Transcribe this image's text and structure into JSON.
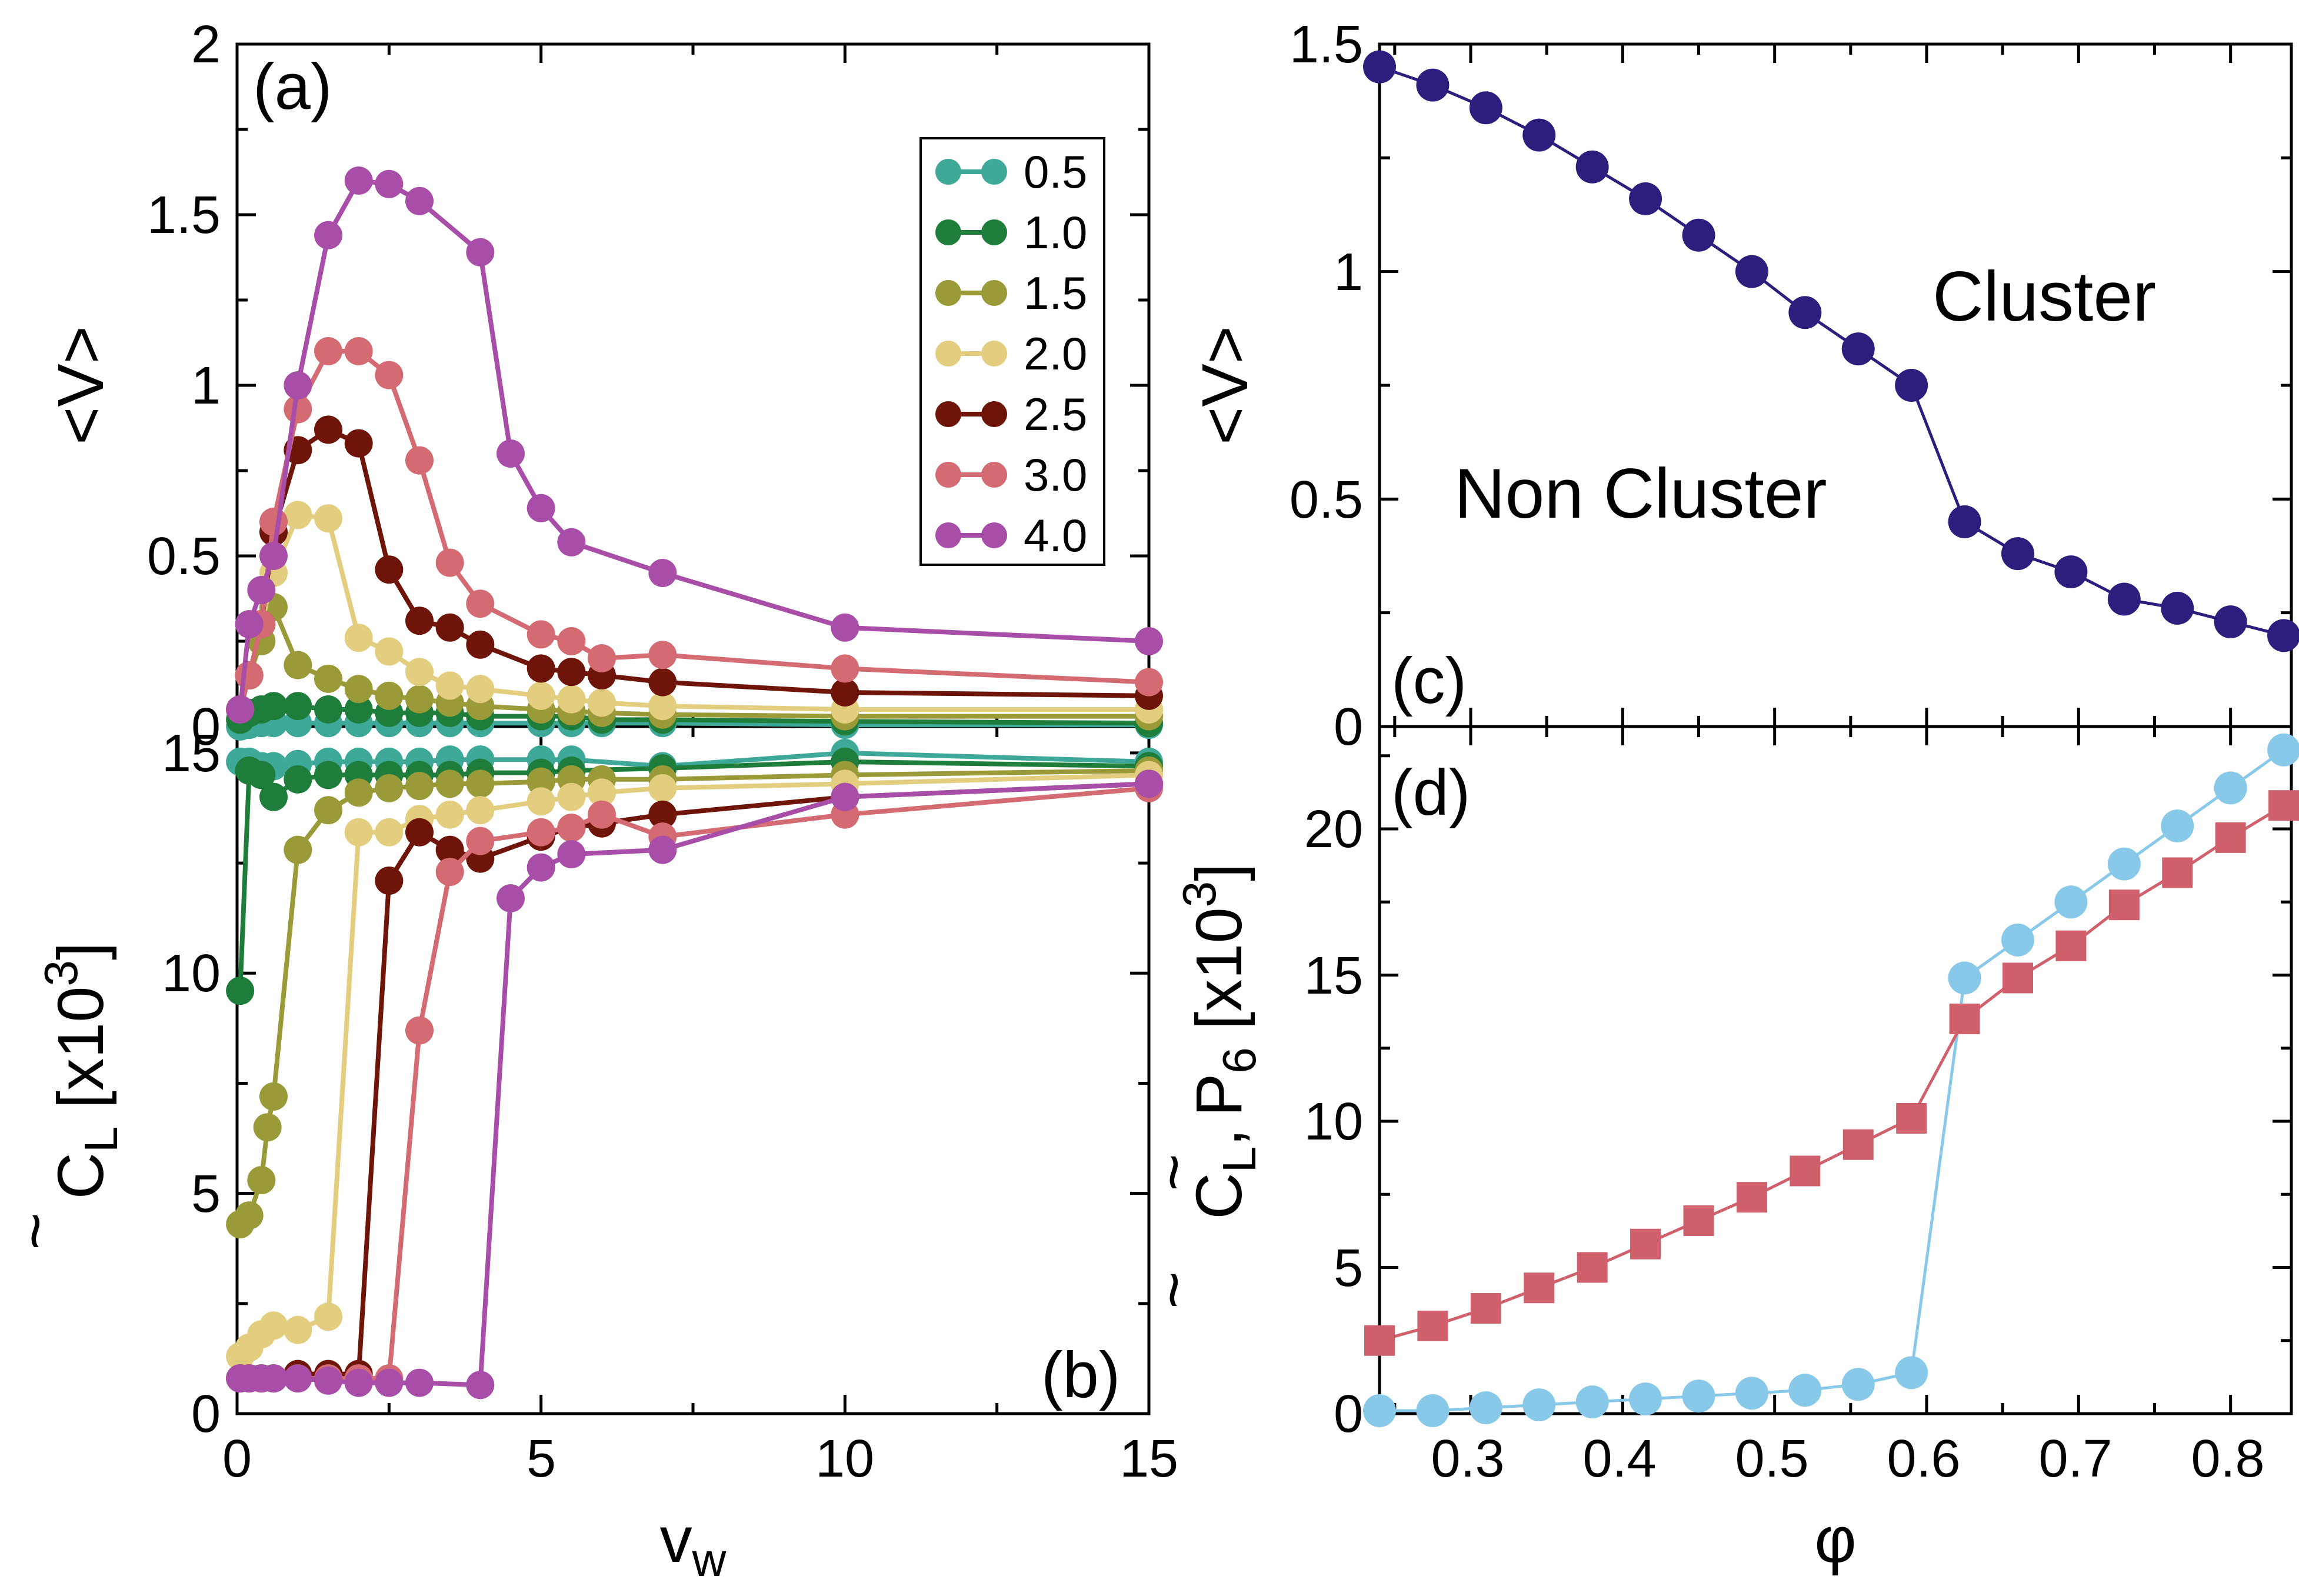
{
  "chart_data": [
    {
      "panel": "a",
      "type": "line",
      "panel_label": "(a)",
      "ylabel": "<V>",
      "xlim": [
        0,
        15
      ],
      "ylim": [
        0,
        2
      ],
      "yticks": [
        "0",
        "0.5",
        "1",
        "1.5",
        "2"
      ],
      "legend_position": "top-right",
      "series": [
        {
          "name": "0.5",
          "color": "#3fa999",
          "x": [
            0.05,
            0.2,
            0.4,
            0.6,
            1.0,
            1.5,
            2.0,
            2.5,
            3.0,
            3.5,
            4.0,
            5.0,
            5.5,
            6.0,
            7.0,
            10.0,
            15.0
          ],
          "y": [
            0.0,
            0.005,
            0.01,
            0.01,
            0.01,
            0.01,
            0.01,
            0.01,
            0.01,
            0.01,
            0.01,
            0.01,
            0.01,
            0.01,
            0.01,
            0.005,
            0.005
          ]
        },
        {
          "name": "1.0",
          "color": "#1e7d3a",
          "x": [
            0.05,
            0.2,
            0.4,
            0.6,
            1.0,
            1.5,
            2.0,
            2.5,
            3.0,
            3.5,
            4.0,
            5.0,
            5.5,
            6.0,
            7.0,
            10.0,
            15.0
          ],
          "y": [
            0.02,
            0.04,
            0.05,
            0.06,
            0.06,
            0.05,
            0.05,
            0.04,
            0.04,
            0.04,
            0.03,
            0.03,
            0.03,
            0.02,
            0.02,
            0.015,
            0.01
          ]
        },
        {
          "name": "1.5",
          "color": "#9a9a38",
          "x": [
            0.05,
            0.2,
            0.4,
            0.6,
            1.0,
            1.5,
            2.0,
            2.5,
            3.0,
            3.5,
            4.0,
            5.0,
            5.5,
            6.0,
            7.0,
            10.0,
            15.0
          ],
          "y": [
            0.05,
            0.15,
            0.25,
            0.35,
            0.18,
            0.14,
            0.11,
            0.09,
            0.08,
            0.07,
            0.06,
            0.05,
            0.045,
            0.04,
            0.035,
            0.03,
            0.03
          ]
        },
        {
          "name": "2.0",
          "color": "#e3cd7e",
          "x": [
            0.05,
            0.2,
            0.4,
            0.6,
            1.0,
            1.5,
            2.0,
            2.5,
            3.0,
            3.5,
            4.0,
            5.0,
            5.5,
            6.0,
            7.0,
            10.0,
            15.0
          ],
          "y": [
            0.05,
            0.15,
            0.3,
            0.45,
            0.62,
            0.61,
            0.26,
            0.22,
            0.16,
            0.12,
            0.11,
            0.09,
            0.08,
            0.07,
            0.06,
            0.05,
            0.05
          ]
        },
        {
          "name": "2.5",
          "color": "#6e1408",
          "x": [
            0.05,
            0.2,
            0.4,
            0.6,
            1.0,
            1.5,
            2.0,
            2.5,
            3.0,
            3.5,
            4.0,
            5.0,
            5.5,
            6.0,
            7.0,
            10.0,
            15.0
          ],
          "y": [
            0.05,
            0.15,
            0.3,
            0.57,
            0.81,
            0.87,
            0.83,
            0.46,
            0.31,
            0.29,
            0.24,
            0.17,
            0.16,
            0.15,
            0.13,
            0.1,
            0.09
          ]
        },
        {
          "name": "3.0",
          "color": "#d46a72",
          "x": [
            0.05,
            0.2,
            0.4,
            0.6,
            1.0,
            1.5,
            2.0,
            2.5,
            3.0,
            3.5,
            4.0,
            5.0,
            5.5,
            6.0,
            7.0,
            10.0,
            15.0
          ],
          "y": [
            0.05,
            0.15,
            0.3,
            0.6,
            0.93,
            1.1,
            1.1,
            1.03,
            0.78,
            0.48,
            0.36,
            0.27,
            0.25,
            0.2,
            0.21,
            0.17,
            0.13
          ]
        },
        {
          "name": "4.0",
          "color": "#a84ea8",
          "x": [
            0.05,
            0.2,
            0.4,
            0.6,
            1.0,
            1.5,
            2.0,
            2.5,
            3.0,
            4.0,
            4.5,
            5.0,
            5.5,
            7.0,
            10.0,
            15.0
          ],
          "y": [
            0.05,
            0.3,
            0.4,
            0.5,
            1.0,
            1.44,
            1.6,
            1.59,
            1.54,
            1.39,
            0.8,
            0.64,
            0.54,
            0.45,
            0.29,
            0.25
          ]
        }
      ]
    },
    {
      "panel": "b",
      "type": "line",
      "panel_label": "(b)",
      "ylabel_main": "C",
      "ylabel_tilde": "~",
      "ylabel_sub": "L",
      "ylabel_bracket": "[x10",
      "ylabel_sup": "3",
      "ylabel_close": "]",
      "xlabel_main": "v",
      "xlabel_sub": "w",
      "xlim": [
        0,
        15
      ],
      "ylim": [
        0,
        15.6
      ],
      "xticks": [
        "0",
        "5",
        "10",
        "15"
      ],
      "yticks": [
        "0",
        "5",
        "10",
        "15"
      ],
      "series": [
        {
          "name": "0.5",
          "color": "#3fa999",
          "x": [
            0.05,
            0.2,
            0.4,
            0.6,
            1.0,
            1.5,
            2.0,
            2.5,
            3.0,
            3.5,
            4.0,
            5.0,
            5.5,
            7.0,
            10.0,
            15.0
          ],
          "y": [
            14.8,
            14.8,
            14.7,
            14.7,
            14.75,
            14.8,
            14.8,
            14.8,
            14.8,
            14.85,
            14.85,
            14.85,
            14.85,
            14.7,
            15.0,
            14.8
          ]
        },
        {
          "name": "1.0",
          "color": "#1e7d3a",
          "x": [
            0.05,
            0.2,
            0.4,
            0.6,
            1.0,
            1.5,
            2.0,
            2.5,
            3.0,
            3.5,
            4.0,
            5.0,
            5.5,
            7.0,
            10.0,
            15.0
          ],
          "y": [
            9.6,
            14.6,
            14.5,
            14.0,
            14.4,
            14.5,
            14.5,
            14.5,
            14.5,
            14.5,
            14.55,
            14.55,
            14.6,
            14.65,
            14.8,
            14.7
          ]
        },
        {
          "name": "1.5",
          "color": "#9a9a38",
          "x": [
            0.05,
            0.2,
            0.4,
            0.5,
            0.6,
            1.0,
            1.5,
            2.0,
            2.5,
            3.0,
            3.5,
            4.0,
            5.0,
            5.5,
            6.0,
            7.0,
            10.0,
            15.0
          ],
          "y": [
            4.3,
            4.5,
            5.3,
            6.5,
            7.2,
            12.8,
            13.7,
            14.1,
            14.2,
            14.25,
            14.3,
            14.3,
            14.35,
            14.4,
            14.4,
            14.4,
            14.5,
            14.6
          ]
        },
        {
          "name": "2.0",
          "color": "#e3cd7e",
          "x": [
            0.05,
            0.2,
            0.4,
            0.6,
            1.0,
            1.5,
            2.0,
            2.5,
            3.0,
            3.5,
            4.0,
            5.0,
            5.5,
            6.0,
            7.0,
            10.0,
            15.0
          ],
          "y": [
            1.3,
            1.5,
            1.8,
            2.0,
            1.9,
            2.2,
            13.2,
            13.2,
            13.5,
            13.6,
            13.7,
            13.9,
            14.0,
            14.1,
            14.2,
            14.3,
            14.5
          ]
        },
        {
          "name": "2.5",
          "color": "#6e1408",
          "x": [
            0.05,
            0.2,
            0.4,
            0.6,
            1.0,
            1.5,
            2.0,
            2.5,
            3.0,
            3.5,
            4.0,
            5.0,
            5.5,
            6.0,
            7.0,
            10.0,
            15.0
          ],
          "y": [
            0.8,
            0.8,
            0.8,
            0.8,
            0.9,
            0.9,
            0.9,
            12.1,
            13.2,
            12.8,
            12.6,
            13.1,
            13.3,
            13.4,
            13.6,
            14.0,
            14.3
          ]
        },
        {
          "name": "3.0",
          "color": "#d46a72",
          "x": [
            0.05,
            0.2,
            0.4,
            0.6,
            1.0,
            1.5,
            2.0,
            2.5,
            3.0,
            3.5,
            4.0,
            5.0,
            5.5,
            6.0,
            7.0,
            10.0,
            15.0
          ],
          "y": [
            0.8,
            0.8,
            0.8,
            0.8,
            0.8,
            0.8,
            0.8,
            0.8,
            8.7,
            12.3,
            13.0,
            13.2,
            13.3,
            13.6,
            13.1,
            13.6,
            14.2
          ]
        },
        {
          "name": "4.0",
          "color": "#a84ea8",
          "x": [
            0.05,
            0.2,
            0.4,
            0.6,
            1.0,
            1.5,
            2.0,
            2.5,
            3.0,
            4.0,
            4.5,
            5.0,
            5.5,
            7.0,
            10.0,
            15.0
          ],
          "y": [
            0.8,
            0.8,
            0.8,
            0.8,
            0.8,
            0.75,
            0.7,
            0.7,
            0.7,
            0.65,
            11.7,
            12.4,
            12.7,
            12.8,
            14.0,
            14.3
          ]
        }
      ]
    },
    {
      "panel": "c",
      "type": "line",
      "panel_label": "(c)",
      "ylabel": "<V>",
      "xlim": [
        0.24,
        0.84
      ],
      "ylim": [
        0,
        1.5
      ],
      "yticks": [
        "0",
        "0.5",
        "1",
        "1.5"
      ],
      "annotations": [
        "Cluster",
        "Non Cluster"
      ],
      "series": [
        {
          "name": "<V>",
          "color": "#2b1e7d",
          "x": [
            0.24,
            0.275,
            0.31,
            0.345,
            0.38,
            0.415,
            0.45,
            0.485,
            0.52,
            0.555,
            0.59,
            0.625,
            0.66,
            0.695,
            0.73,
            0.765,
            0.8,
            0.835
          ],
          "y": [
            1.45,
            1.41,
            1.36,
            1.3,
            1.23,
            1.16,
            1.08,
            1.0,
            0.91,
            0.83,
            0.75,
            0.45,
            0.38,
            0.34,
            0.28,
            0.26,
            0.23,
            0.2
          ]
        }
      ]
    },
    {
      "panel": "d",
      "type": "line",
      "panel_label": "(d)",
      "ylabel_c": "C",
      "ylabel_c_sub": "L",
      "ylabel_comma": ",",
      "ylabel_p": "P",
      "ylabel_p_sub": "6",
      "ylabel_tilde": "~",
      "ylabel_bracket": "[x10",
      "ylabel_sup": "3",
      "ylabel_close": "]",
      "xlabel": "φ",
      "xlim": [
        0.24,
        0.84
      ],
      "ylim": [
        0,
        23.5
      ],
      "xticks": [
        "0.3",
        "0.4",
        "0.5",
        "0.6",
        "0.7",
        "0.8"
      ],
      "yticks": [
        "0",
        "5",
        "10",
        "15",
        "20"
      ],
      "series": [
        {
          "name": "C_L",
          "marker": "circle",
          "color": "#88c9ea",
          "x": [
            0.24,
            0.275,
            0.31,
            0.345,
            0.38,
            0.415,
            0.45,
            0.485,
            0.52,
            0.555,
            0.59,
            0.625,
            0.66,
            0.695,
            0.73,
            0.765,
            0.8,
            0.835
          ],
          "y": [
            0.1,
            0.1,
            0.2,
            0.3,
            0.4,
            0.5,
            0.6,
            0.7,
            0.8,
            1.0,
            1.4,
            14.9,
            16.2,
            17.5,
            18.8,
            20.1,
            21.4,
            22.7
          ]
        },
        {
          "name": "P_6",
          "marker": "square",
          "color": "#d0606b",
          "x": [
            0.24,
            0.275,
            0.31,
            0.345,
            0.38,
            0.415,
            0.45,
            0.485,
            0.52,
            0.555,
            0.59,
            0.625,
            0.66,
            0.695,
            0.73,
            0.765,
            0.8,
            0.835
          ],
          "y": [
            2.5,
            3.0,
            3.6,
            4.3,
            5.0,
            5.8,
            6.6,
            7.4,
            8.3,
            9.2,
            10.1,
            13.5,
            14.9,
            16.0,
            17.4,
            18.5,
            19.7,
            20.8
          ]
        }
      ]
    }
  ]
}
